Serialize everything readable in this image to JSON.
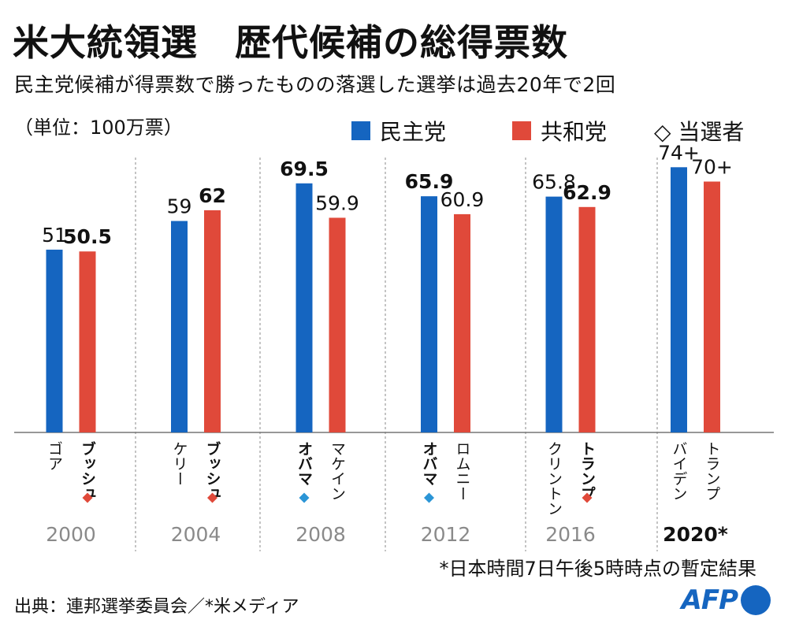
{
  "header": {
    "title": "米大統領選　歴代候補の総得票数",
    "subtitle": "民主党候補が得票数で勝ったものの落選した選挙は過去20年で2回",
    "unit": "（単位：100万票）"
  },
  "legend": {
    "dem_label": "民主党",
    "rep_label": "共和党",
    "winner_label": "◇ 当選者"
  },
  "colors": {
    "dem": "#1565c0",
    "rep": "#e0493a",
    "dem_marker": "#2b95d6",
    "rep_marker": "#e0493a"
  },
  "chart_data": {
    "type": "bar",
    "title": "米大統領選　歴代候補の総得票数",
    "ylabel": "100万票",
    "ylim": [
      0,
      80
    ],
    "categories": [
      "2000",
      "2004",
      "2008",
      "2012",
      "2016",
      "2020*"
    ],
    "series": [
      {
        "name": "民主党",
        "values": [
          51,
          59,
          69.5,
          65.9,
          65.8,
          74
        ]
      },
      {
        "name": "共和党",
        "values": [
          50.5,
          62,
          59.9,
          60.9,
          62.9,
          70
        ]
      }
    ],
    "value_labels": {
      "民主党": [
        "51",
        "59",
        "69.5",
        "65.9",
        "65.8",
        "74+"
      ],
      "共和党": [
        "50.5",
        "62",
        "59.9",
        "60.9",
        "62.9",
        "70+"
      ]
    },
    "candidates": {
      "民主党": [
        "ゴア",
        "ケリー",
        "オバマ",
        "オバマ",
        "クリントン",
        "バイデン"
      ],
      "共和党": [
        "ブッシュ",
        "ブッシュ",
        "マケイン",
        "ロムニー",
        "トランプ",
        "トランプ"
      ]
    },
    "winner": [
      "共和党",
      "共和党",
      "民主党",
      "民主党",
      "共和党",
      null
    ],
    "highlight_category": "2020*"
  },
  "footnote": "*日本時間7日午後5時時点の暫定結果",
  "source": "出典：連邦選挙委員会／*米メディア",
  "logo": {
    "text": "AFP"
  }
}
